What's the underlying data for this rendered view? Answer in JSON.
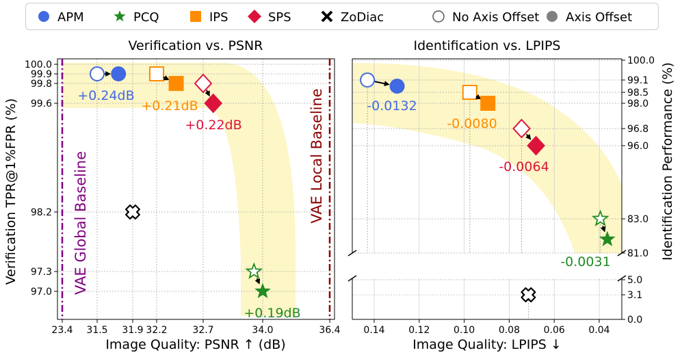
{
  "legend": {
    "items": [
      {
        "label": "APM",
        "marker": "circle",
        "color": "#4169e1"
      },
      {
        "label": "PCQ",
        "marker": "star",
        "color": "#228b22"
      },
      {
        "label": "IPS",
        "marker": "square",
        "color": "#ff8c00"
      },
      {
        "label": "SPS",
        "marker": "diamond",
        "color": "#dc143c"
      },
      {
        "label": "ZoDiac",
        "marker": "cross",
        "color": "#000000"
      },
      {
        "label": "No Axis Offset",
        "marker": "open-circle",
        "color": "#555555"
      },
      {
        "label": "Axis Offset",
        "marker": "filled-circle",
        "color": "#808080"
      }
    ]
  },
  "chart_data": [
    {
      "type": "scatter",
      "title": "Verification vs. PSNR",
      "xlabel": "Image Quality: PSNR ↑ (dB)",
      "ylabel": "Verification TPR@1%FPR (%)",
      "x_ticks": [
        "23.4",
        "31.5",
        "31.9",
        "32.2",
        "32.7",
        "34.0",
        "36.4"
      ],
      "y_ticks": [
        "100.0",
        "99.9",
        "99.8",
        "99.6",
        "98.2",
        "97.3",
        "97.0"
      ],
      "baselines": [
        {
          "label": "VAE Global Baseline",
          "x": 23.4,
          "color": "#800080"
        },
        {
          "label": "VAE Local Baseline",
          "x": 36.4,
          "color": "#8b0000"
        }
      ],
      "series": [
        {
          "name": "APM",
          "color": "#4169e1",
          "no_offset": {
            "x": 31.5,
            "y": 99.9
          },
          "offset": {
            "x": 31.74,
            "y": 99.9
          },
          "delta": "+0.24dB"
        },
        {
          "name": "IPS",
          "color": "#ff8c00",
          "no_offset": {
            "x": 32.2,
            "y": 99.9
          },
          "offset": {
            "x": 32.41,
            "y": 99.8
          },
          "delta": "+0.21dB"
        },
        {
          "name": "SPS",
          "color": "#dc143c",
          "no_offset": {
            "x": 32.7,
            "y": 99.8
          },
          "offset": {
            "x": 32.92,
            "y": 99.6
          },
          "delta": "+0.22dB"
        },
        {
          "name": "PCQ",
          "color": "#228b22",
          "no_offset": {
            "x": 33.81,
            "y": 97.3
          },
          "offset": {
            "x": 34.0,
            "y": 97.0
          },
          "delta": "+0.19dB"
        },
        {
          "name": "ZoDiac",
          "color": "#000000",
          "no_offset": {
            "x": 31.9,
            "y": 98.2
          }
        }
      ]
    },
    {
      "type": "scatter",
      "title": "Identification vs. LPIPS",
      "xlabel": "Image Quality: LPIPS ↓",
      "ylabel": "Identification Performance (%)",
      "x_ticks": [
        "0.14",
        "0.12",
        "0.10",
        "0.08",
        "0.06",
        "0.04"
      ],
      "y_ticks": [
        "100.0",
        "99.1",
        "98.5",
        "98.0",
        "96.8",
        "96.0",
        "83.0",
        "81.0",
        "5.0",
        "3.1",
        "0.0"
      ],
      "series": [
        {
          "name": "APM",
          "color": "#4169e1",
          "no_offset": {
            "x": 0.143,
            "y": 99.1
          },
          "offset": {
            "x": 0.1298,
            "y": 98.8
          },
          "delta": "-0.0132"
        },
        {
          "name": "IPS",
          "color": "#ff8c00",
          "no_offset": {
            "x": 0.0975,
            "y": 98.5
          },
          "offset": {
            "x": 0.0895,
            "y": 98.0
          },
          "delta": "-0.0080"
        },
        {
          "name": "SPS",
          "color": "#dc143c",
          "no_offset": {
            "x": 0.0745,
            "y": 96.8
          },
          "offset": {
            "x": 0.0681,
            "y": 96.0
          },
          "delta": "-0.0064"
        },
        {
          "name": "PCQ",
          "color": "#228b22",
          "no_offset": {
            "x": 0.0395,
            "y": 83.0
          },
          "offset": {
            "x": 0.0364,
            "y": 81.8
          },
          "delta": "-0.0031"
        },
        {
          "name": "ZoDiac",
          "color": "#000000",
          "no_offset": {
            "x": 0.0715,
            "y": 3.1
          }
        }
      ]
    }
  ]
}
